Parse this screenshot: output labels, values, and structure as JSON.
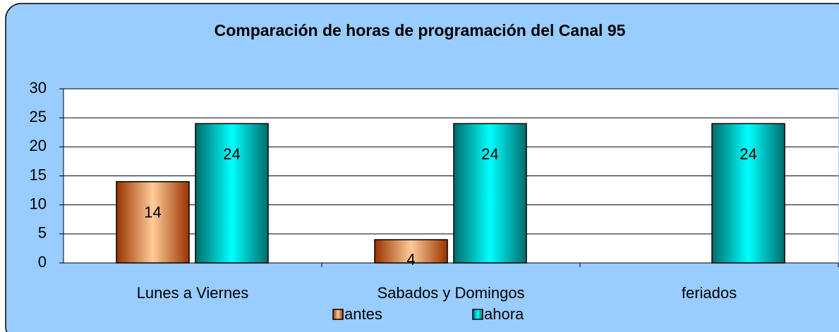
{
  "chart_data": {
    "type": "bar",
    "title": "Comparación de horas de programación del Canal 95",
    "categories": [
      "Lunes a Viernes",
      "Sabados y Domingos",
      "feriados"
    ],
    "series": [
      {
        "name": "antes",
        "color": "#ffcc99",
        "values": [
          14,
          4,
          null
        ]
      },
      {
        "name": "ahora",
        "color": "#00ffff",
        "values": [
          24,
          24,
          24
        ]
      }
    ],
    "ylim": [
      0,
      30
    ],
    "yticks": [
      0,
      5,
      10,
      15,
      20,
      25,
      30
    ],
    "grid": true,
    "legend": "bottom"
  }
}
